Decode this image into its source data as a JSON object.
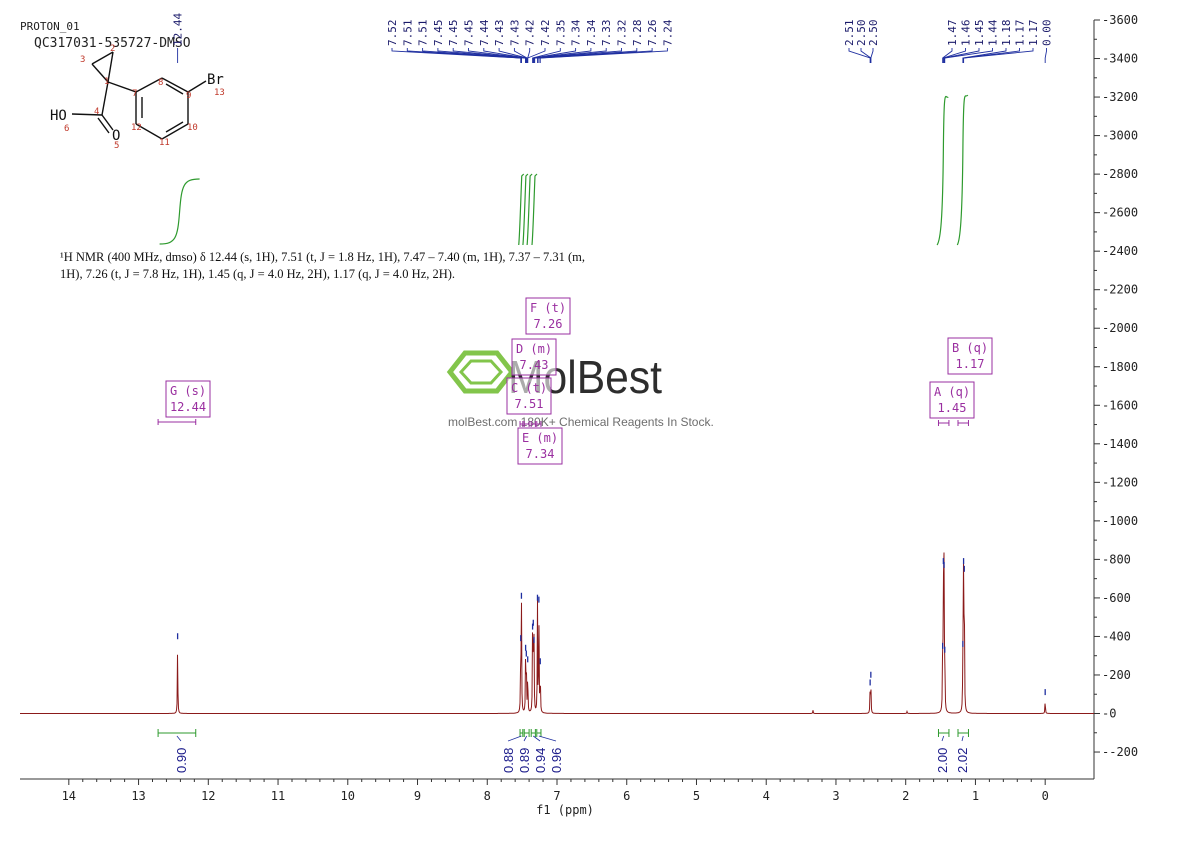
{
  "header": {
    "experiment": "PROTON_01",
    "sample": "QC317031-535727-DMSO"
  },
  "molecule": {
    "atom_labels": [
      "1",
      "2",
      "3",
      "4",
      "5",
      "6",
      "7",
      "8",
      "9",
      "10",
      "11",
      "12",
      "13"
    ],
    "hetero": {
      "br": "Br",
      "ho": "HO",
      "o": "O"
    }
  },
  "nmr_description": {
    "line1": "¹H NMR (400 MHz, dmso) δ 12.44 (s, 1H), 7.51 (t, J = 1.8 Hz, 1H), 7.47 – 7.40 (m, 1H), 7.37 – 7.31 (m,",
    "line2": "1H), 7.26 (t, J = 7.8 Hz, 1H), 1.45 (q, J = 4.0 Hz, 2H), 1.17 (q, J = 4.0 Hz, 2H)."
  },
  "watermark": {
    "brand": "MolBest",
    "tagline": "molBest.com 180K+ Chemical Reagents In Stock."
  },
  "chart_data": {
    "type": "line",
    "xlabel": "f1 (ppm)",
    "xlim": [
      14.7,
      -0.7
    ],
    "ylim": [
      -340,
      3600
    ],
    "x_ticks": [
      14,
      13,
      12,
      11,
      10,
      9,
      8,
      7,
      6,
      5,
      4,
      3,
      2,
      1,
      0
    ],
    "y_ticks": [
      -200,
      0,
      200,
      400,
      600,
      800,
      1000,
      1200,
      1400,
      1600,
      1800,
      2000,
      2200,
      2400,
      2600,
      2800,
      3000,
      3200,
      3400,
      3600
    ],
    "peaks": [
      {
        "ppm": 12.44,
        "height": 370
      },
      {
        "ppm": 7.52,
        "height": 360
      },
      {
        "ppm": 7.51,
        "height": 580
      },
      {
        "ppm": 7.45,
        "height": 310
      },
      {
        "ppm": 7.44,
        "height": 280
      },
      {
        "ppm": 7.42,
        "height": 250
      },
      {
        "ppm": 7.35,
        "height": 420
      },
      {
        "ppm": 7.34,
        "height": 440
      },
      {
        "ppm": 7.33,
        "height": 350
      },
      {
        "ppm": 7.28,
        "height": 570
      },
      {
        "ppm": 7.26,
        "height": 560
      },
      {
        "ppm": 7.24,
        "height": 240
      },
      {
        "ppm": 3.33,
        "height": 18
      },
      {
        "ppm": 2.51,
        "height": 130
      },
      {
        "ppm": 2.5,
        "height": 170
      },
      {
        "ppm": 1.98,
        "height": 12
      },
      {
        "ppm": 1.47,
        "height": 320
      },
      {
        "ppm": 1.46,
        "height": 760
      },
      {
        "ppm": 1.45,
        "height": 740
      },
      {
        "ppm": 1.44,
        "height": 300
      },
      {
        "ppm": 1.18,
        "height": 330
      },
      {
        "ppm": 1.17,
        "height": 760
      },
      {
        "ppm": 1.16,
        "height": 720
      },
      {
        "ppm": 0.0,
        "height": 80
      }
    ],
    "peak_labels_group1": [
      "12.44"
    ],
    "peak_labels_group2": [
      "7.52",
      "7.51",
      "7.51",
      "7.45",
      "7.45",
      "7.45",
      "7.44",
      "7.43",
      "7.43",
      "7.42",
      "7.42",
      "7.35",
      "7.34",
      "7.34",
      "7.33",
      "7.32",
      "7.28",
      "7.26",
      "7.24"
    ],
    "peak_labels_group3": [
      "2.51",
      "2.50",
      "2.50"
    ],
    "peak_labels_group4": [
      "1.47",
      "1.46",
      "1.45",
      "1.44",
      "1.18",
      "1.17",
      "1.17",
      "0.00"
    ],
    "multiplets": [
      {
        "id": "G",
        "type": "s",
        "shift": "12.44",
        "range": [
          12.72,
          12.18
        ]
      },
      {
        "id": "F",
        "type": "t",
        "shift": "7.26",
        "range": [
          7.29,
          7.23
        ]
      },
      {
        "id": "D",
        "type": "m",
        "shift": "7.43",
        "range": [
          7.47,
          7.4
        ]
      },
      {
        "id": "C",
        "type": "t",
        "shift": "7.51",
        "range": [
          7.53,
          7.49
        ]
      },
      {
        "id": "E",
        "type": "m",
        "shift": "7.34",
        "range": [
          7.37,
          7.31
        ]
      },
      {
        "id": "A",
        "type": "q",
        "shift": "1.45",
        "range": [
          1.53,
          1.38
        ]
      },
      {
        "id": "B",
        "type": "q",
        "shift": "1.17",
        "range": [
          1.25,
          1.1
        ]
      }
    ],
    "integrals": [
      {
        "value": "0.90",
        "range": [
          12.72,
          12.18
        ]
      },
      {
        "value": "0.88",
        "range": [
          7.53,
          7.49
        ]
      },
      {
        "value": "0.89",
        "range": [
          7.47,
          7.4
        ]
      },
      {
        "value": "0.94",
        "range": [
          7.37,
          7.31
        ]
      },
      {
        "value": "0.96",
        "range": [
          7.29,
          7.23
        ]
      },
      {
        "value": "2.00",
        "range": [
          1.53,
          1.38
        ]
      },
      {
        "value": "2.02",
        "range": [
          1.25,
          1.1
        ]
      }
    ],
    "colors": {
      "spectrum": "#8b1a1a",
      "peak_marker": "#1f2fa0",
      "integral": "#2e9a2e",
      "multiplet": "#9a2fa0",
      "axis": "#333333"
    }
  }
}
